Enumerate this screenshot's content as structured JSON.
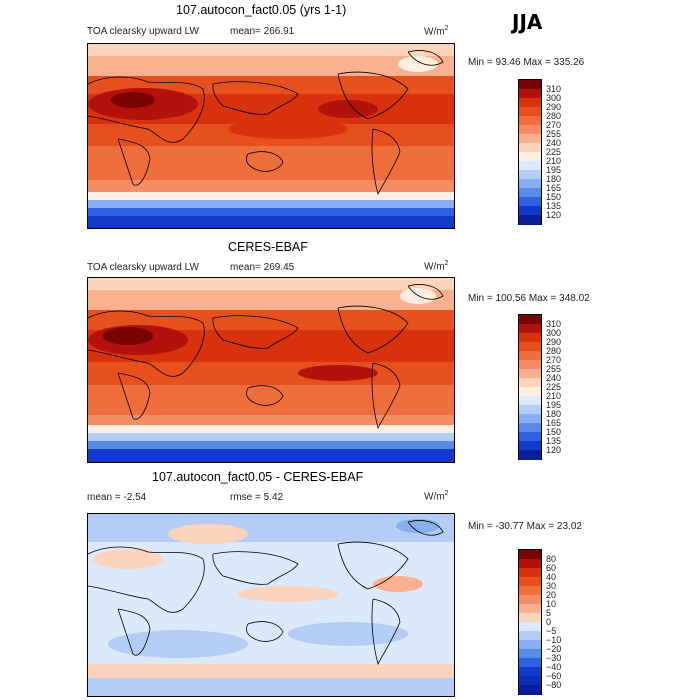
{
  "season": "JJA",
  "panels": [
    {
      "title": "107.autocon_fact0.05 (yrs 1-1)",
      "subtitle": "TOA clearsky upward LW",
      "mean_text": "mean= 266.91",
      "unit_base": "W/m",
      "unit_exp": "2",
      "minmax_text": "Min =  93.46 Max = 335.26",
      "colorbar_labels": [
        "310",
        "300",
        "290",
        "280",
        "270",
        "255",
        "240",
        "225",
        "210",
        "195",
        "180",
        "165",
        "150",
        "135",
        "120"
      ],
      "colorbar_colors": [
        "#7a0403",
        "#b2120b",
        "#d8330e",
        "#e6501c",
        "#ef6e3d",
        "#f48d64",
        "#f8b08e",
        "#fcd4bb",
        "#fdeee2",
        "#dce9fa",
        "#b3cdf5",
        "#88aef0",
        "#5b8be8",
        "#2f62de",
        "#1239c9",
        "#0a1e9c"
      ]
    },
    {
      "title": "CERES-EBAF",
      "subtitle": "TOA clearsky upward LW",
      "mean_text": "mean= 269.45",
      "unit_base": "W/m",
      "unit_exp": "2",
      "minmax_text": "Min = 100.56 Max = 348.02",
      "colorbar_labels": [
        "310",
        "300",
        "290",
        "280",
        "270",
        "255",
        "240",
        "225",
        "210",
        "195",
        "180",
        "165",
        "150",
        "135",
        "120"
      ],
      "colorbar_colors": [
        "#7a0403",
        "#b2120b",
        "#d8330e",
        "#e6501c",
        "#ef6e3d",
        "#f48d64",
        "#f8b08e",
        "#fcd4bb",
        "#fdeee2",
        "#dce9fa",
        "#b3cdf5",
        "#88aef0",
        "#5b8be8",
        "#2f62de",
        "#1239c9",
        "#0a1e9c"
      ]
    },
    {
      "title": "107.autocon_fact0.05 - CERES-EBAF",
      "mean_text": "mean =   -2.54",
      "rmse_text": "rmse =    5.42",
      "unit_base": "W/m",
      "unit_exp": "2",
      "minmax_text": "Min = -30.77 Max =  23.02",
      "colorbar_labels": [
        "80",
        "60",
        "40",
        "30",
        "20",
        "10",
        "5",
        "0",
        "−5",
        "−10",
        "−20",
        "−30",
        "−40",
        "−60",
        "−80"
      ],
      "colorbar_colors": [
        "#7a0403",
        "#b2120b",
        "#d8330e",
        "#e6501c",
        "#ef6e3d",
        "#f48d64",
        "#f8b08e",
        "#fcd4bb",
        "#dce9fa",
        "#b3cdf5",
        "#88aef0",
        "#5b8be8",
        "#2f62de",
        "#1239c9",
        "#0d2cb4",
        "#0a1e9c"
      ]
    }
  ]
}
